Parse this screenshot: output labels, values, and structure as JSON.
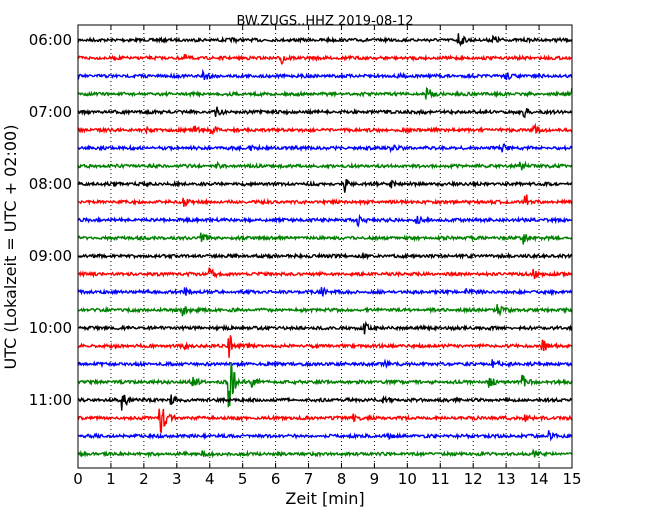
{
  "chart_data": {
    "type": "line",
    "title": "BW.ZUGS..HHZ 2019-08-12",
    "xlabel": "Zeit  [min]",
    "ylabel": "UTC (Lokalzeit = UTC + 02:00)",
    "xlim": [
      0,
      15
    ],
    "x_ticks": [
      "0",
      "1",
      "2",
      "3",
      "4",
      "5",
      "6",
      "7",
      "8",
      "9",
      "10",
      "11",
      "12",
      "13",
      "14",
      "15"
    ],
    "y_tick_labels": [
      "06:00",
      "07:00",
      "08:00",
      "09:00",
      "10:00",
      "11:00"
    ],
    "grid": "vertical dotted",
    "trace_colors": [
      "#000000",
      "#ff0000",
      "#0000ff",
      "#008000"
    ],
    "traces": [
      {
        "start": "06:00",
        "events": [
          [
            4.7,
            0.15
          ],
          [
            11.55,
            0.8
          ],
          [
            12.6,
            0.5
          ]
        ]
      },
      {
        "start": "06:15",
        "events": [
          [
            3.25,
            0.25
          ],
          [
            6.2,
            0.6
          ]
        ]
      },
      {
        "start": "06:30",
        "events": [
          [
            3.8,
            0.6
          ],
          [
            9.65,
            0.3
          ],
          [
            13.0,
            0.4
          ]
        ]
      },
      {
        "start": "06:45",
        "events": [
          [
            10.6,
            0.8
          ],
          [
            15.0,
            0.6
          ]
        ]
      },
      {
        "start": "07:00",
        "events": [
          [
            4.2,
            0.6
          ],
          [
            13.55,
            0.5
          ]
        ]
      },
      {
        "start": "07:15",
        "events": [
          [
            2.1,
            0.25
          ],
          [
            3.55,
            0.4
          ],
          [
            4.05,
            0.7
          ],
          [
            13.85,
            0.5
          ]
        ]
      },
      {
        "start": "07:30",
        "events": [
          [
            5.2,
            0.3
          ],
          [
            9.5,
            0.3
          ],
          [
            12.9,
            0.5
          ]
        ]
      },
      {
        "start": "07:45",
        "events": [
          [
            4.2,
            0.3
          ],
          [
            13.45,
            0.5
          ]
        ]
      },
      {
        "start": "08:00",
        "events": [
          [
            1.1,
            0.15
          ],
          [
            8.1,
            0.8
          ],
          [
            9.5,
            0.4
          ]
        ]
      },
      {
        "start": "08:15",
        "events": [
          [
            3.2,
            0.6
          ],
          [
            13.6,
            0.9
          ]
        ]
      },
      {
        "start": "08:30",
        "events": [
          [
            8.5,
            0.5
          ],
          [
            10.3,
            0.3
          ]
        ]
      },
      {
        "start": "08:45",
        "events": [
          [
            3.75,
            0.6
          ],
          [
            13.55,
            0.6
          ]
        ]
      },
      {
        "start": "09:00",
        "events": [
          [
            7.2,
            0.25
          ]
        ]
      },
      {
        "start": "09:15",
        "events": [
          [
            4.0,
            0.6
          ],
          [
            13.85,
            0.5
          ]
        ]
      },
      {
        "start": "09:30",
        "events": [
          [
            3.2,
            0.5
          ],
          [
            7.4,
            0.5
          ],
          [
            11.8,
            0.3
          ]
        ]
      },
      {
        "start": "09:45",
        "events": [
          [
            3.2,
            0.6
          ],
          [
            12.75,
            0.5
          ]
        ]
      },
      {
        "start": "10:00",
        "events": [
          [
            8.7,
            0.6
          ]
        ]
      },
      {
        "start": "10:15",
        "events": [
          [
            3.25,
            0.4
          ],
          [
            4.6,
            1.4
          ],
          [
            14.1,
            0.7
          ]
        ]
      },
      {
        "start": "10:30",
        "events": [
          [
            9.3,
            0.3
          ],
          [
            12.6,
            0.4
          ]
        ]
      },
      {
        "start": "10:45",
        "events": [
          [
            3.5,
            0.5
          ],
          [
            4.6,
            3.2
          ],
          [
            5.3,
            0.5
          ],
          [
            12.5,
            0.6
          ],
          [
            13.5,
            0.7
          ]
        ]
      },
      {
        "start": "11:00",
        "events": [
          [
            1.35,
            1.0
          ],
          [
            2.8,
            0.8
          ],
          [
            9.25,
            0.3
          ]
        ]
      },
      {
        "start": "11:15",
        "events": [
          [
            2.5,
            2.2
          ],
          [
            8.35,
            0.5
          ],
          [
            13.5,
            0.6
          ]
        ]
      },
      {
        "start": "11:30",
        "events": [
          [
            9.4,
            0.3
          ],
          [
            14.3,
            0.5
          ]
        ]
      },
      {
        "start": "11:45",
        "events": [
          [
            3.75,
            0.6
          ],
          [
            13.85,
            0.4
          ]
        ]
      }
    ]
  }
}
